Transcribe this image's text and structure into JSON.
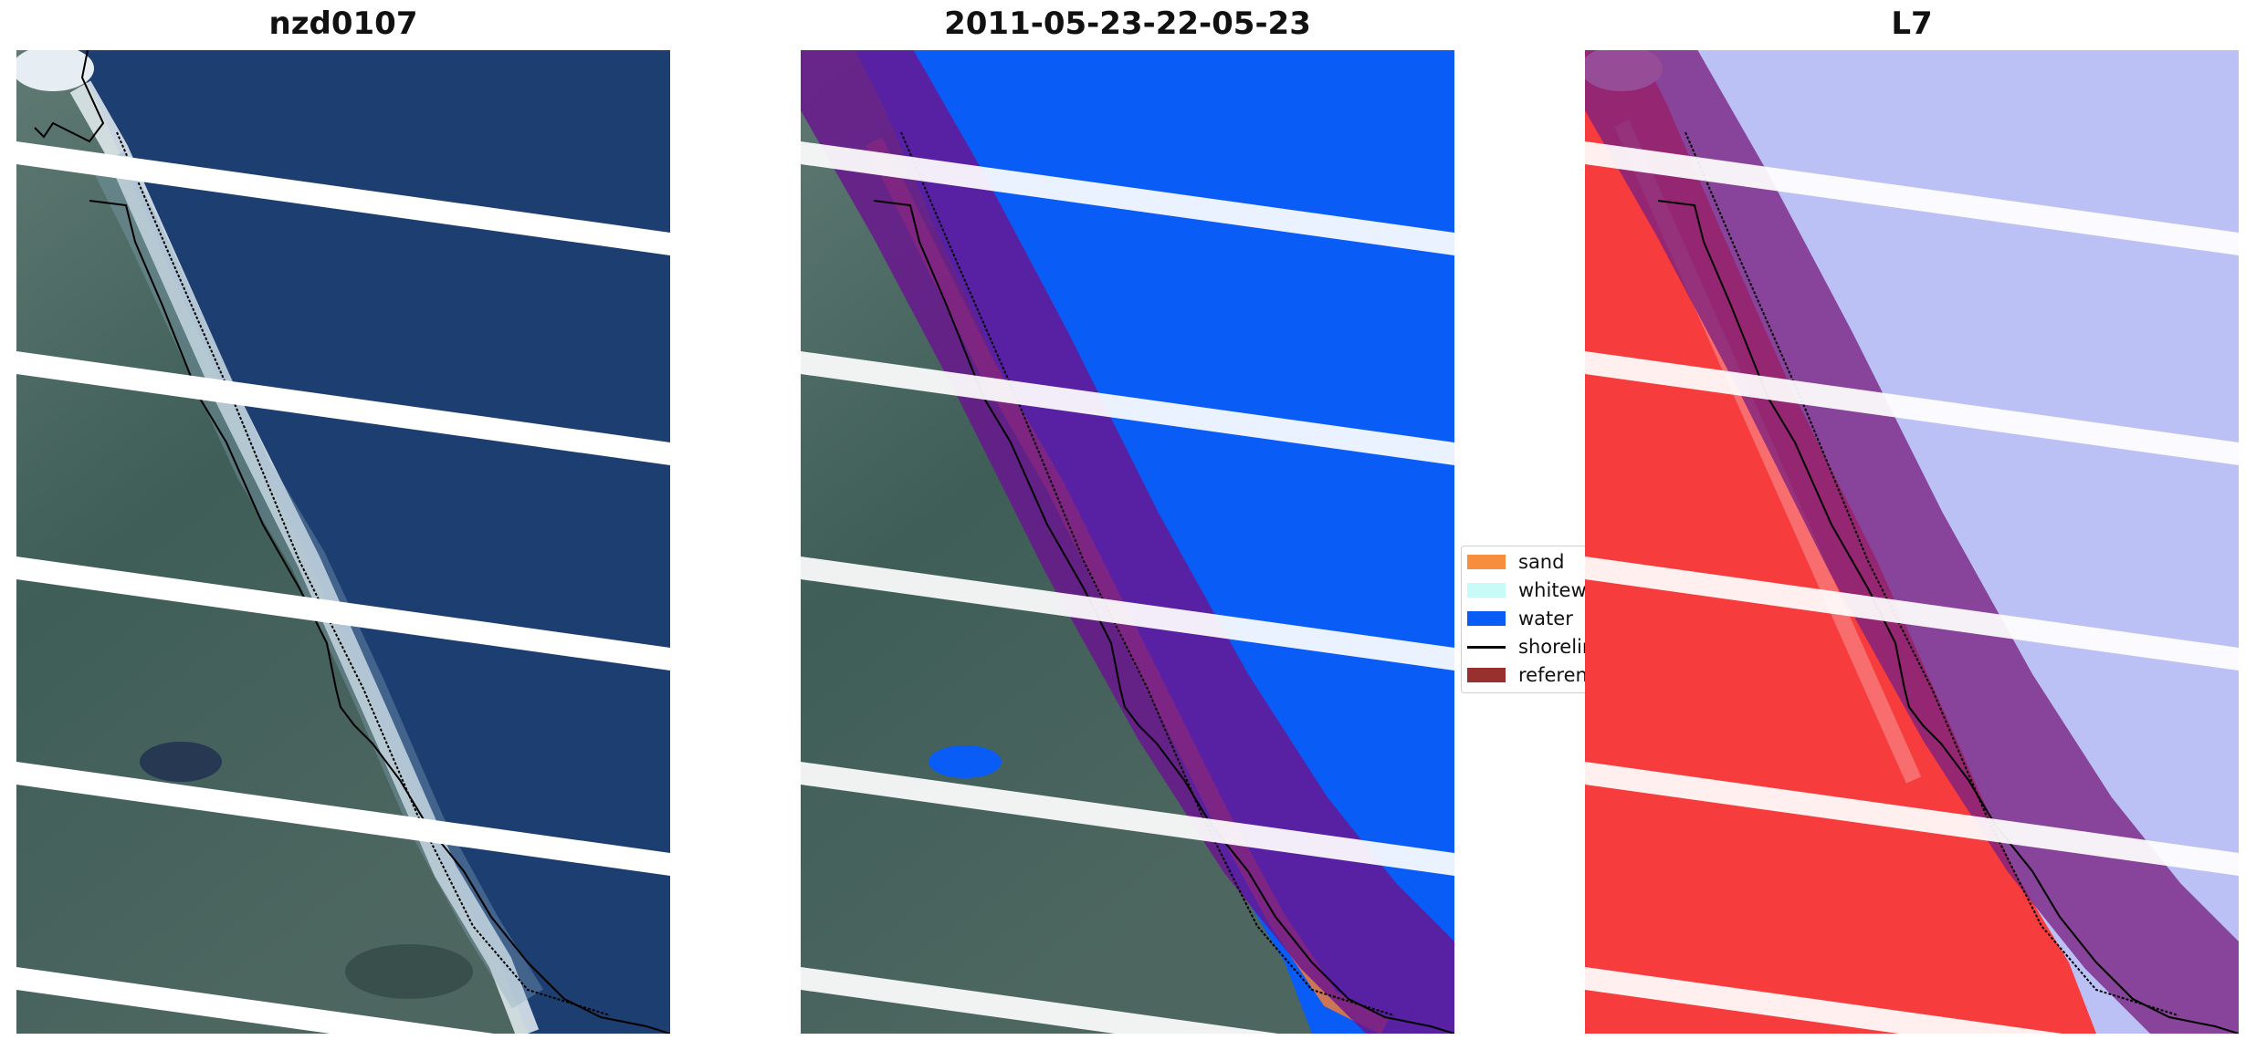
{
  "panels": [
    {
      "title": "nzd0107",
      "kind": "rgb"
    },
    {
      "title": "2011-05-23-22-05-23",
      "kind": "classified"
    },
    {
      "title": "L7",
      "kind": "index"
    }
  ],
  "legend": {
    "items": [
      {
        "label": "sand",
        "color": "#f78e3d",
        "type": "patch"
      },
      {
        "label": "whitewater",
        "color": "#c8fbf8",
        "type": "patch"
      },
      {
        "label": "water",
        "color": "#0a5cf6",
        "type": "patch"
      },
      {
        "label": "shoreline",
        "color": "#000000",
        "type": "line"
      },
      {
        "label": "reference shoreline",
        "color": "#983030",
        "type": "patch"
      }
    ]
  },
  "colors": {
    "water_rgb": "#1e3f70",
    "land_rgb": "#3f5e5a",
    "water_class": "#0a5cf6",
    "buffer": "#6a1490",
    "index_land": "#f83a3a",
    "index_water": "#b8bdf6",
    "gap": "#ffffff"
  }
}
